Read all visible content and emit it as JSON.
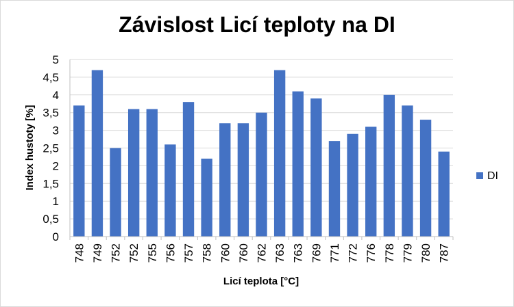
{
  "chart_data": {
    "type": "bar",
    "title": "Závislost Licí teploty na DI",
    "xlabel": "Licí teplota [°C]",
    "ylabel": "Index hustoty [%]",
    "categories": [
      "748",
      "749",
      "752",
      "752",
      "755",
      "756",
      "757",
      "758",
      "760",
      "760",
      "762",
      "763",
      "763",
      "769",
      "771",
      "772",
      "776",
      "778",
      "779",
      "780",
      "787"
    ],
    "series": [
      {
        "name": "DI",
        "color": "#4472c4",
        "values": [
          3.7,
          4.7,
          2.5,
          3.6,
          3.6,
          2.6,
          3.8,
          2.2,
          3.2,
          3.2,
          3.5,
          4.7,
          4.1,
          3.9,
          2.7,
          2.9,
          3.1,
          4.0,
          3.7,
          3.3,
          2.4
        ]
      }
    ],
    "ylim": [
      0,
      5
    ],
    "yticks": [
      "0",
      "0,5",
      "1",
      "1,5",
      "2",
      "2,5",
      "3",
      "3,5",
      "4",
      "4,5",
      "5"
    ],
    "grid": true,
    "legend_position": "right"
  }
}
